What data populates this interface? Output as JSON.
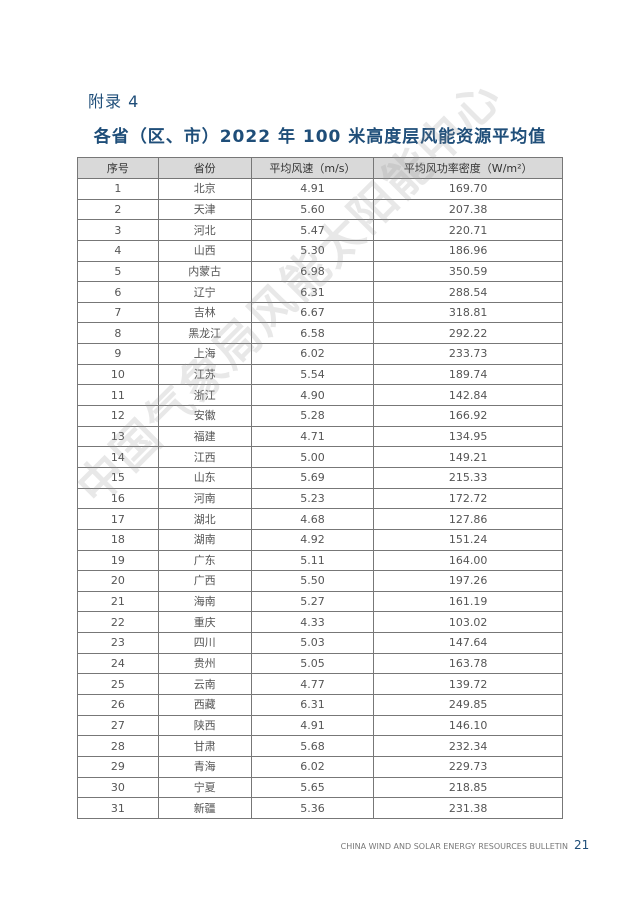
{
  "appendix_label": "附录 4",
  "title": "各省（区、市）2022 年 100 米高度层风能资源平均值",
  "headers": [
    "序号",
    "省份",
    "平均风速（m/s）",
    "平均风功率密度（W/m²）"
  ],
  "rows": [
    [
      "1",
      "北京",
      "4.91",
      "169.70"
    ],
    [
      "2",
      "天津",
      "5.60",
      "207.38"
    ],
    [
      "3",
      "河北",
      "5.47",
      "220.71"
    ],
    [
      "4",
      "山西",
      "5.30",
      "186.96"
    ],
    [
      "5",
      "内蒙古",
      "6.98",
      "350.59"
    ],
    [
      "6",
      "辽宁",
      "6.31",
      "288.54"
    ],
    [
      "7",
      "吉林",
      "6.67",
      "318.81"
    ],
    [
      "8",
      "黑龙江",
      "6.58",
      "292.22"
    ],
    [
      "9",
      "上海",
      "6.02",
      "233.73"
    ],
    [
      "10",
      "江苏",
      "5.54",
      "189.74"
    ],
    [
      "11",
      "浙江",
      "4.90",
      "142.84"
    ],
    [
      "12",
      "安徽",
      "5.28",
      "166.92"
    ],
    [
      "13",
      "福建",
      "4.71",
      "134.95"
    ],
    [
      "14",
      "江西",
      "5.00",
      "149.21"
    ],
    [
      "15",
      "山东",
      "5.69",
      "215.33"
    ],
    [
      "16",
      "河南",
      "5.23",
      "172.72"
    ],
    [
      "17",
      "湖北",
      "4.68",
      "127.86"
    ],
    [
      "18",
      "湖南",
      "4.92",
      "151.24"
    ],
    [
      "19",
      "广东",
      "5.11",
      "164.00"
    ],
    [
      "20",
      "广西",
      "5.50",
      "197.26"
    ],
    [
      "21",
      "海南",
      "5.27",
      "161.19"
    ],
    [
      "22",
      "重庆",
      "4.33",
      "103.02"
    ],
    [
      "23",
      "四川",
      "5.03",
      "147.64"
    ],
    [
      "24",
      "贵州",
      "5.05",
      "163.78"
    ],
    [
      "25",
      "云南",
      "4.77",
      "139.72"
    ],
    [
      "26",
      "西藏",
      "6.31",
      "249.85"
    ],
    [
      "27",
      "陕西",
      "4.91",
      "146.10"
    ],
    [
      "28",
      "甘肃",
      "5.68",
      "232.34"
    ],
    [
      "29",
      "青海",
      "6.02",
      "229.73"
    ],
    [
      "30",
      "宁夏",
      "5.65",
      "218.85"
    ],
    [
      "31",
      "新疆",
      "5.36",
      "231.38"
    ]
  ],
  "watermark": "中国气象局风能太阳能中心",
  "footer": {
    "text": "CHINA WIND AND SOLAR ENERGY RESOURCES BULLETIN",
    "page": "21"
  },
  "colors": {
    "accent": "#1f4e79",
    "header_bg": "#d9d9d9"
  }
}
